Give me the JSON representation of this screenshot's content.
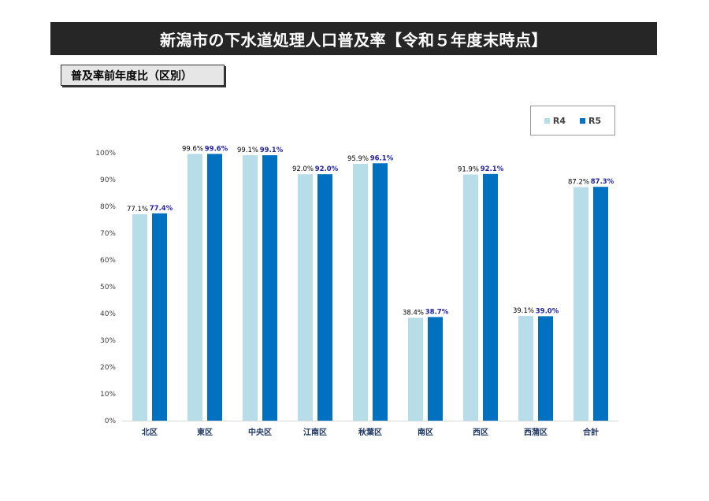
{
  "title": "新潟市の下水道処理人口普及率【令和５年度末時点】",
  "subtitle": "普及率前年度比（区別）",
  "colors": {
    "r4": "#b7dde8",
    "r5": "#0070c0"
  },
  "chart_data": {
    "type": "bar",
    "categories": [
      "北区",
      "東区",
      "中央区",
      "江南区",
      "秋葉区",
      "南区",
      "西区",
      "西蒲区",
      "合計"
    ],
    "series": [
      {
        "name": "R4",
        "values": [
          77.1,
          99.6,
          99.1,
          92.0,
          95.9,
          38.4,
          91.9,
          39.1,
          87.2
        ],
        "labels": [
          "77.1%",
          "99.6%",
          "99.1%",
          "92.0%",
          "95.9%",
          "38.4%",
          "91.9%",
          "39.1%",
          "87.2%"
        ]
      },
      {
        "name": "R5",
        "values": [
          77.4,
          99.6,
          99.1,
          92.0,
          96.1,
          38.7,
          92.1,
          39.0,
          87.3
        ],
        "labels": [
          "77.4%",
          "99.6%",
          "99.1%",
          "92.0%",
          "96.1%",
          "38.7%",
          "92.1%",
          "39.0%",
          "87.3%"
        ]
      }
    ],
    "ylim": [
      0,
      100
    ],
    "yticks": [
      "0%",
      "10%",
      "20%",
      "30%",
      "40%",
      "50%",
      "60%",
      "70%",
      "80%",
      "90%",
      "100%"
    ],
    "legend_position": "top-right",
    "grid": false
  }
}
